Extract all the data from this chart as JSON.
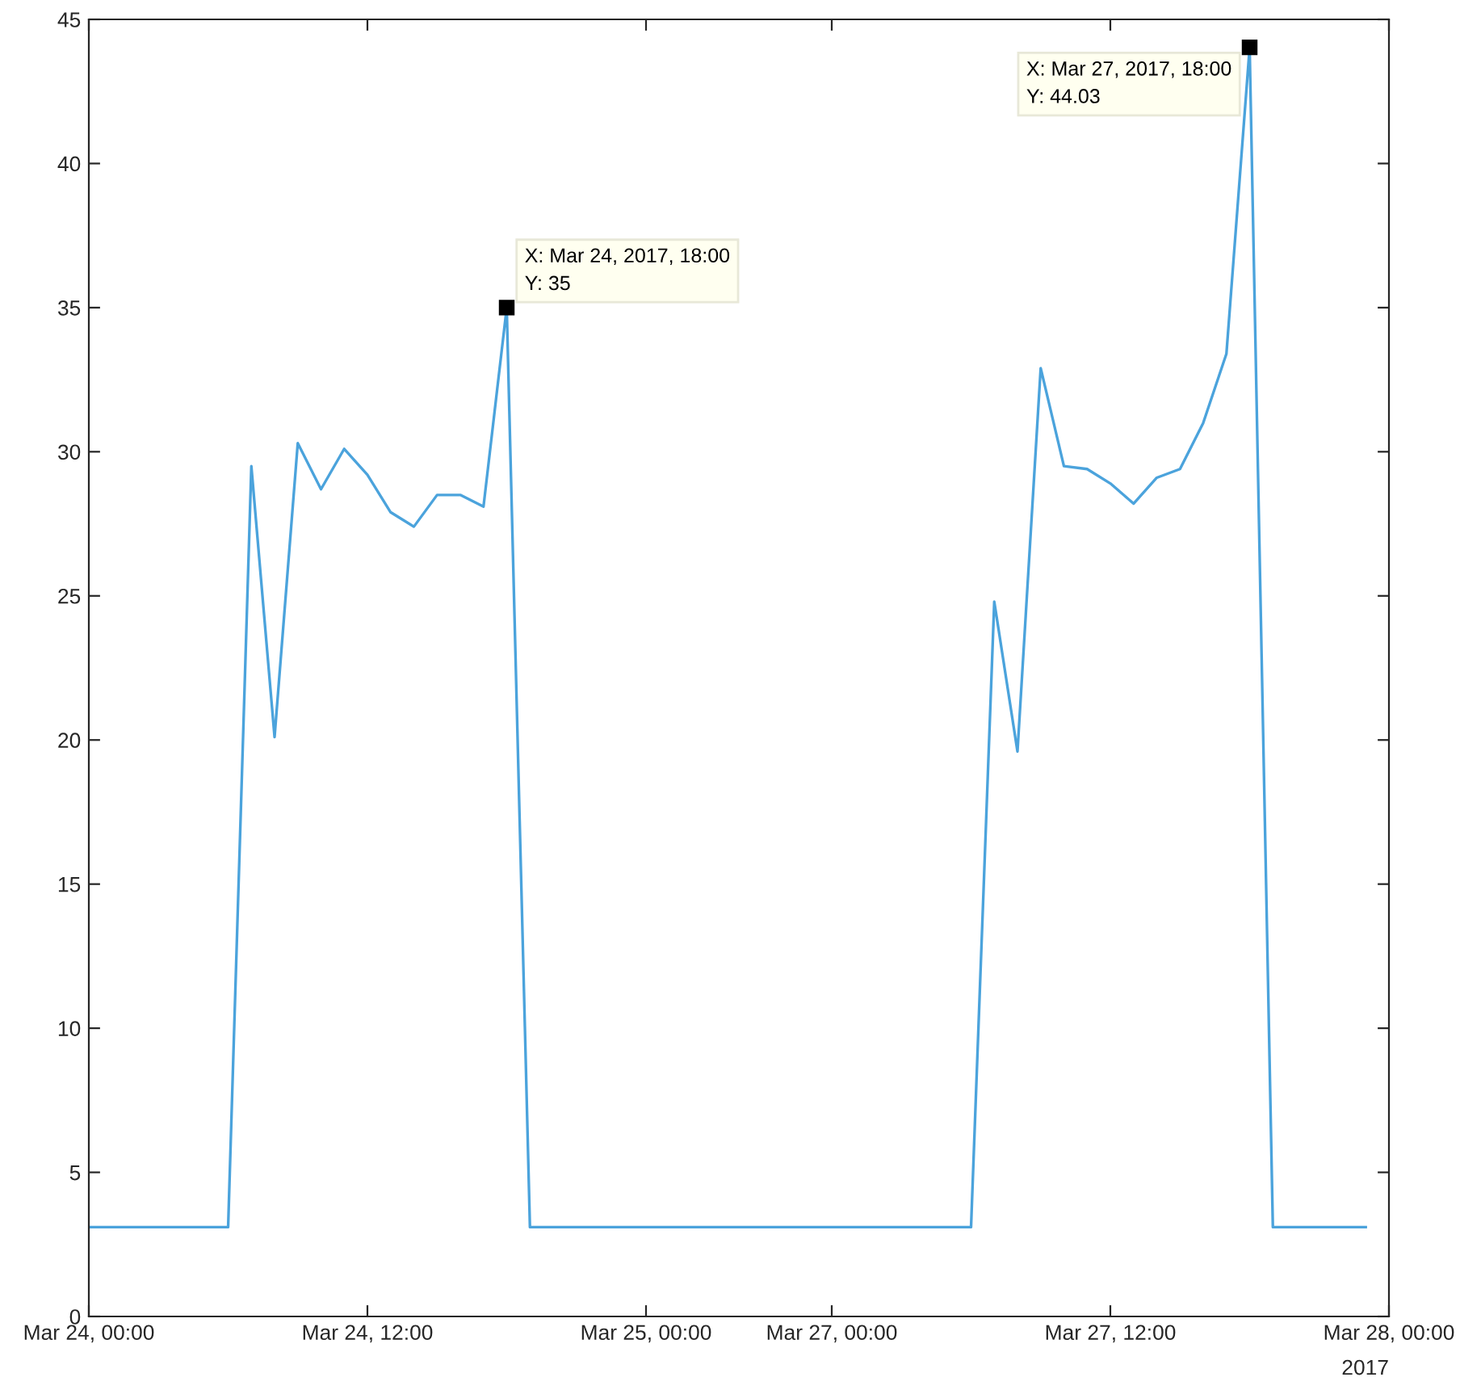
{
  "chart_data": {
    "type": "line",
    "categories": [
      "Mar 24, 00:00",
      null,
      null,
      null,
      null,
      null,
      null,
      null,
      null,
      null,
      null,
      null,
      "Mar 24, 12:00",
      null,
      null,
      null,
      null,
      null,
      null,
      null,
      null,
      null,
      null,
      null,
      "Mar 25, 00:00",
      null,
      null,
      null,
      null,
      null,
      null,
      null,
      "Mar 27, 00:00",
      null,
      null,
      null,
      null,
      null,
      null,
      null,
      null,
      null,
      null,
      null,
      "Mar 27, 12:00",
      null,
      null,
      null,
      null,
      null,
      null,
      null,
      null,
      null,
      null,
      null,
      "Mar 28, 00:00"
    ],
    "series": [
      {
        "color": "#4ba3dc",
        "values": [
          3.1,
          3.1,
          3.1,
          3.1,
          3.1,
          3.1,
          3.1,
          29.5,
          20.1,
          30.3,
          28.7,
          30.1,
          29.2,
          27.9,
          27.4,
          28.5,
          28.5,
          28.1,
          35,
          3.1,
          3.1,
          3.1,
          3.1,
          3.1,
          3.1,
          3.1,
          3.1,
          3.1,
          3.1,
          3.1,
          3.1,
          3.1,
          3.1,
          3.1,
          3.1,
          3.1,
          3.1,
          3.1,
          3.1,
          24.8,
          19.6,
          32.9,
          29.5,
          29.4,
          28.9,
          28.2,
          29.1,
          29.4,
          31.0,
          33.4,
          44.03,
          3.1,
          3.1,
          3.1,
          3.1,
          3.1,
          null
        ]
      },
      {
        "type": "scatter",
        "marker": "square",
        "color": "#000000",
        "values": [
          null,
          null,
          null,
          null,
          null,
          null,
          null,
          null,
          null,
          null,
          null,
          null,
          null,
          null,
          null,
          null,
          null,
          null,
          35,
          null,
          null,
          null,
          null,
          null,
          null,
          null,
          null,
          null,
          null,
          null,
          null,
          null,
          null,
          null,
          null,
          null,
          null,
          null,
          null,
          null,
          null,
          null,
          null,
          null,
          null,
          null,
          null,
          null,
          null,
          null,
          44.03,
          null,
          null,
          null,
          null,
          null,
          null
        ]
      }
    ],
    "ylim": [
      0,
      45
    ],
    "yticks": [
      0,
      5,
      10,
      15,
      20,
      25,
      30,
      35,
      40,
      45
    ],
    "grid": false,
    "legend": false,
    "marker": "none",
    "line_style": "solid",
    "annotations": [
      "X: Mar 24, 2017, 18:00\nY: 35",
      "X: Mar 27, 2017, 18:00\nY: 44.03",
      "2017"
    ]
  }
}
